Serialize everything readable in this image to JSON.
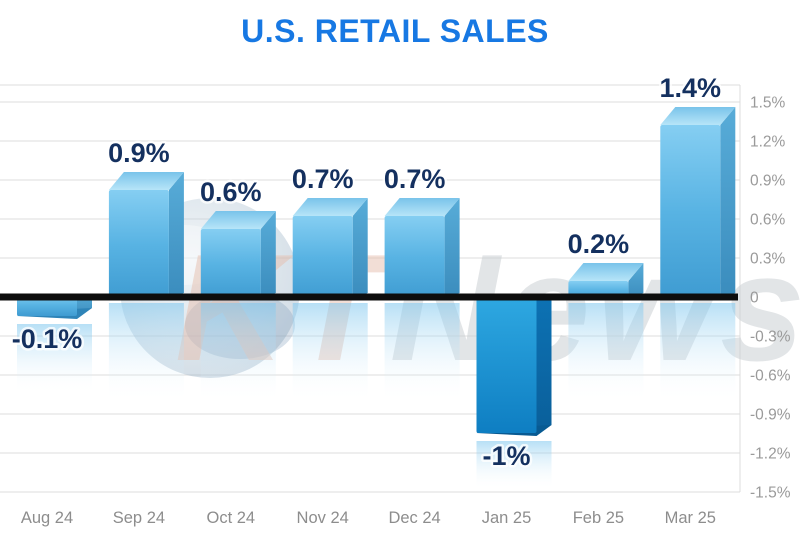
{
  "chart_data": {
    "type": "bar",
    "title": "U.S. RETAIL SALES",
    "categories": [
      "Aug 24",
      "Sep 24",
      "Oct 24",
      "Nov 24",
      "Dec 24",
      "Jan 25",
      "Feb 25",
      "Mar 25"
    ],
    "values": [
      -0.1,
      0.9,
      0.6,
      0.7,
      0.7,
      -1,
      0.2,
      1.4
    ],
    "bar_labels": [
      "-0.1%",
      "0.9%",
      "0.6%",
      "0.7%",
      "0.7%",
      "-1%",
      "0.2%",
      "1.4%"
    ],
    "unit": "%",
    "xlabel": "",
    "ylabel": "",
    "ylim": [
      -1.5,
      1.5
    ],
    "ytick_values": [
      1.5,
      1.2,
      0.9,
      0.6,
      0.3,
      0,
      -0.3,
      -0.6,
      -0.9,
      -1.2,
      -1.5
    ],
    "ytick_labels": [
      "1.5%",
      "1.2%",
      "0.9%",
      "0.6%",
      "0.3%",
      "0",
      "-0.3%",
      "-0.6%",
      "-0.9%",
      "-1.2%",
      "-1.5%"
    ],
    "yaxis_position": "right",
    "grid": true,
    "legend": false,
    "zero_line": true,
    "emphasized_category": "Jan 25"
  },
  "watermark": {
    "text_primary": "KT",
    "text_secondary": "News"
  },
  "colors": {
    "title": "#1778e3",
    "bar_label": "#14305f",
    "bar_light_top": "#85cef2",
    "bar_light_bottom": "#3e9bd1",
    "bar_dark_top": "#2fa9e2",
    "bar_dark_bottom": "#0e7ec2",
    "gridline": "#dcdcdc",
    "axis_text": "#9a9a9a",
    "zero_line": "#0d0d0d",
    "background": "#ffffff"
  }
}
